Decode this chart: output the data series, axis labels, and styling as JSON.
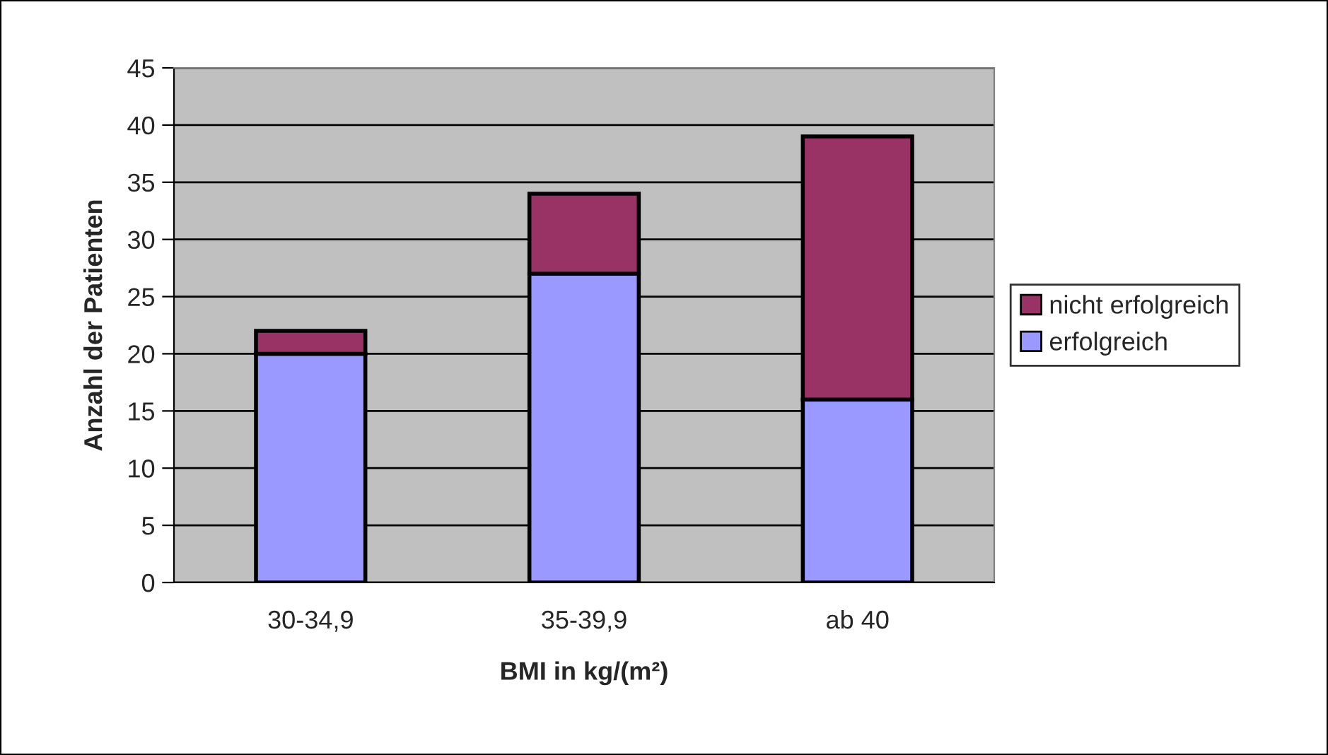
{
  "chart_data": {
    "type": "bar",
    "xlabel": "BMI in kg/(m²)",
    "ylabel": "Anzahl der Patienten",
    "categories": [
      "30-34,9",
      "35-39,9",
      "ab 40"
    ],
    "series": [
      {
        "name": "erfolgreich",
        "color": "#9999ff",
        "values": [
          20,
          27,
          16
        ]
      },
      {
        "name": "nicht erfolgreich",
        "color": "#993366",
        "values": [
          2,
          7,
          23
        ]
      }
    ],
    "stacked": true,
    "ylim": [
      0,
      45
    ],
    "yticks": [
      0,
      5,
      10,
      15,
      20,
      25,
      30,
      35,
      40,
      45
    ],
    "grid": "y",
    "legend": "right"
  }
}
